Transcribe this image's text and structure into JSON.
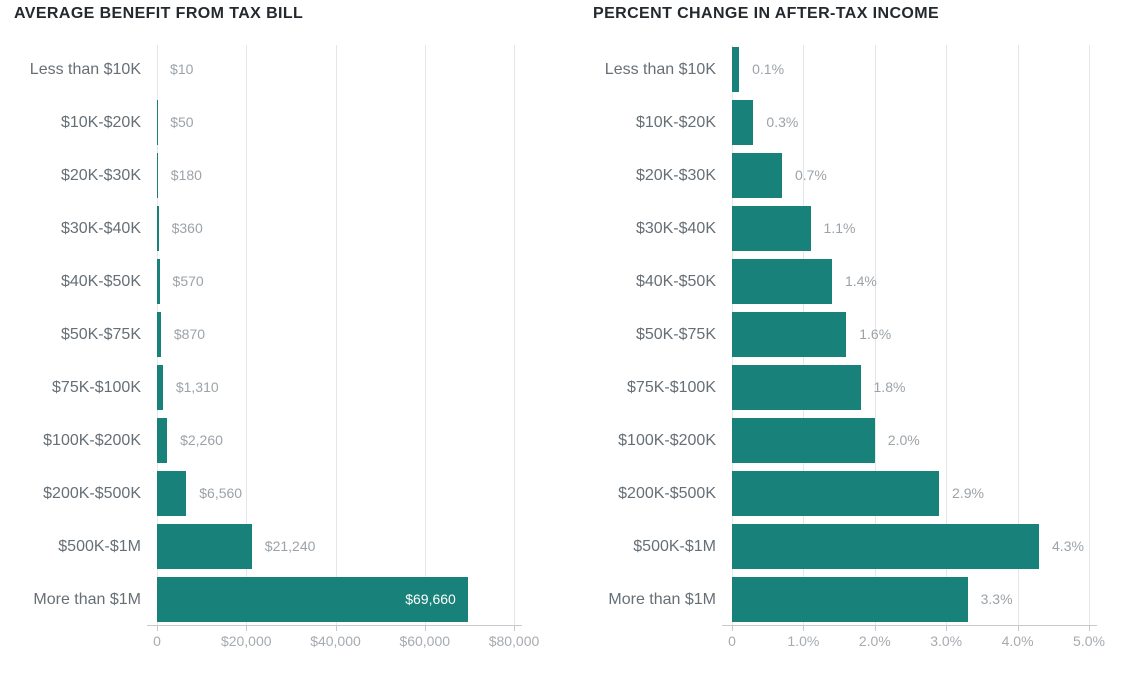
{
  "colors": {
    "bar": "#188179",
    "grid": "#e4e6e7",
    "axis": "#c6c9cb",
    "tick_label": "#a6abb0",
    "value_label": "#9ca3a8",
    "value_label_inside": "#ffffff",
    "category_label": "#666f76",
    "title": "#24292e",
    "background": "#ffffff"
  },
  "chart_data": [
    {
      "type": "bar",
      "orientation": "horizontal",
      "title": "AVERAGE BENEFIT FROM TAX BILL",
      "categories": [
        "Less than $10K",
        "$10K-$20K",
        "$20K-$30K",
        "$30K-$40K",
        "$40K-$50K",
        "$50K-$75K",
        "$75K-$100K",
        "$100K-$200K",
        "$200K-$500K",
        "$500K-$1M",
        "More than $1M"
      ],
      "values": [
        10,
        50,
        180,
        360,
        570,
        870,
        1310,
        2260,
        6560,
        21240,
        69660
      ],
      "value_labels": [
        "$10",
        "$50",
        "$180",
        "$360",
        "$570",
        "$870",
        "$1,310",
        "$2,260",
        "$6,560",
        "$21,240",
        "$69,660"
      ],
      "xlim": [
        0,
        80000
      ],
      "ticks": [
        {
          "v": 0,
          "label": "0"
        },
        {
          "v": 20000,
          "label": "$20,000"
        },
        {
          "v": 40000,
          "label": "$40,000"
        },
        {
          "v": 60000,
          "label": "$60,000"
        },
        {
          "v": 80000,
          "label": "$80,000"
        }
      ],
      "grid": true,
      "legend": false,
      "inside_label_indices": [
        10
      ]
    },
    {
      "type": "bar",
      "orientation": "horizontal",
      "title": "PERCENT CHANGE IN AFTER-TAX INCOME",
      "categories": [
        "Less than $10K",
        "$10K-$20K",
        "$20K-$30K",
        "$30K-$40K",
        "$40K-$50K",
        "$50K-$75K",
        "$75K-$100K",
        "$100K-$200K",
        "$200K-$500K",
        "$500K-$1M",
        "More than $1M"
      ],
      "values": [
        0.1,
        0.3,
        0.7,
        1.1,
        1.4,
        1.6,
        1.8,
        2.0,
        2.9,
        4.3,
        3.3
      ],
      "value_labels": [
        "0.1%",
        "0.3%",
        "0.7%",
        "1.1%",
        "1.4%",
        "1.6%",
        "1.8%",
        "2.0%",
        "2.9%",
        "4.3%",
        "3.3%"
      ],
      "xlim": [
        0,
        5
      ],
      "ticks": [
        {
          "v": 0,
          "label": "0"
        },
        {
          "v": 1,
          "label": "1.0%"
        },
        {
          "v": 2,
          "label": "2.0%"
        },
        {
          "v": 3,
          "label": "3.0%"
        },
        {
          "v": 4,
          "label": "4.0%"
        },
        {
          "v": 5,
          "label": "5.0%"
        }
      ],
      "grid": true,
      "legend": false,
      "inside_label_indices": []
    }
  ]
}
